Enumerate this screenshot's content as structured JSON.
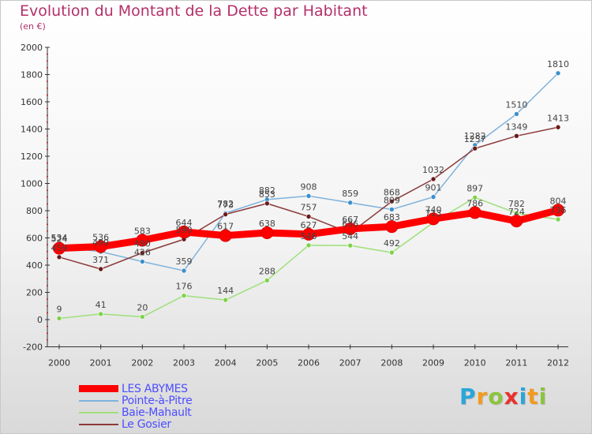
{
  "title": "Evolution du Montant de la Dette par Habitant",
  "subtitle": "(en €)",
  "logo": {
    "text": "Proxiti",
    "letters": [
      {
        "ch": "P",
        "color": "#2aa6d8"
      },
      {
        "ch": "r",
        "color": "#f39a1d"
      },
      {
        "ch": "o",
        "color": "#8bc43f"
      },
      {
        "ch": "x",
        "color": "#e8322b"
      },
      {
        "ch": "i",
        "color": "#2aa6d8"
      },
      {
        "ch": "t",
        "color": "#f39a1d"
      },
      {
        "ch": "i",
        "color": "#8bc43f"
      }
    ]
  },
  "chart_data": {
    "type": "line",
    "title": "Evolution du Montant de la Dette par Habitant",
    "subtitle": "(en €)",
    "x": [
      "2000",
      "2001",
      "2002",
      "2003",
      "2004",
      "2005",
      "2006",
      "2007",
      "2008",
      "2009",
      "2010",
      "2011",
      "2012"
    ],
    "ylim": [
      -200,
      2000
    ],
    "yticks": [
      -200,
      0,
      200,
      400,
      600,
      800,
      1000,
      1200,
      1400,
      1600,
      1800,
      2000
    ],
    "grid": false,
    "legend_position": "bottom-left",
    "series": [
      {
        "name": "LES ABYMES",
        "color": "#ff0000",
        "bold": true,
        "values": [
          524,
          536,
          583,
          644,
          617,
          638,
          627,
          667,
          683,
          740,
          786,
          724,
          804
        ]
      },
      {
        "name": "Pointe-à-Pitre",
        "color": "#7fb2dc",
        "marker": "#3d8fcc",
        "values": [
          534,
          499,
          426,
          359,
          782,
          882,
          908,
          859,
          809,
          901,
          1282,
          1510,
          1810
        ]
      },
      {
        "name": "Baie-Mahault",
        "color": "#9ee07a",
        "marker": "#7ed348",
        "values": [
          9,
          41,
          20,
          176,
          144,
          288,
          546,
          544,
          492,
          713,
          897,
          782,
          736
        ]
      },
      {
        "name": "Le Gosier",
        "color": "#8c3a3a",
        "marker": "#6b1a1a",
        "values": [
          459,
          371,
          490,
          590,
          773,
          853,
          757,
          636,
          868,
          1032,
          1257,
          1349,
          1413
        ]
      }
    ]
  }
}
